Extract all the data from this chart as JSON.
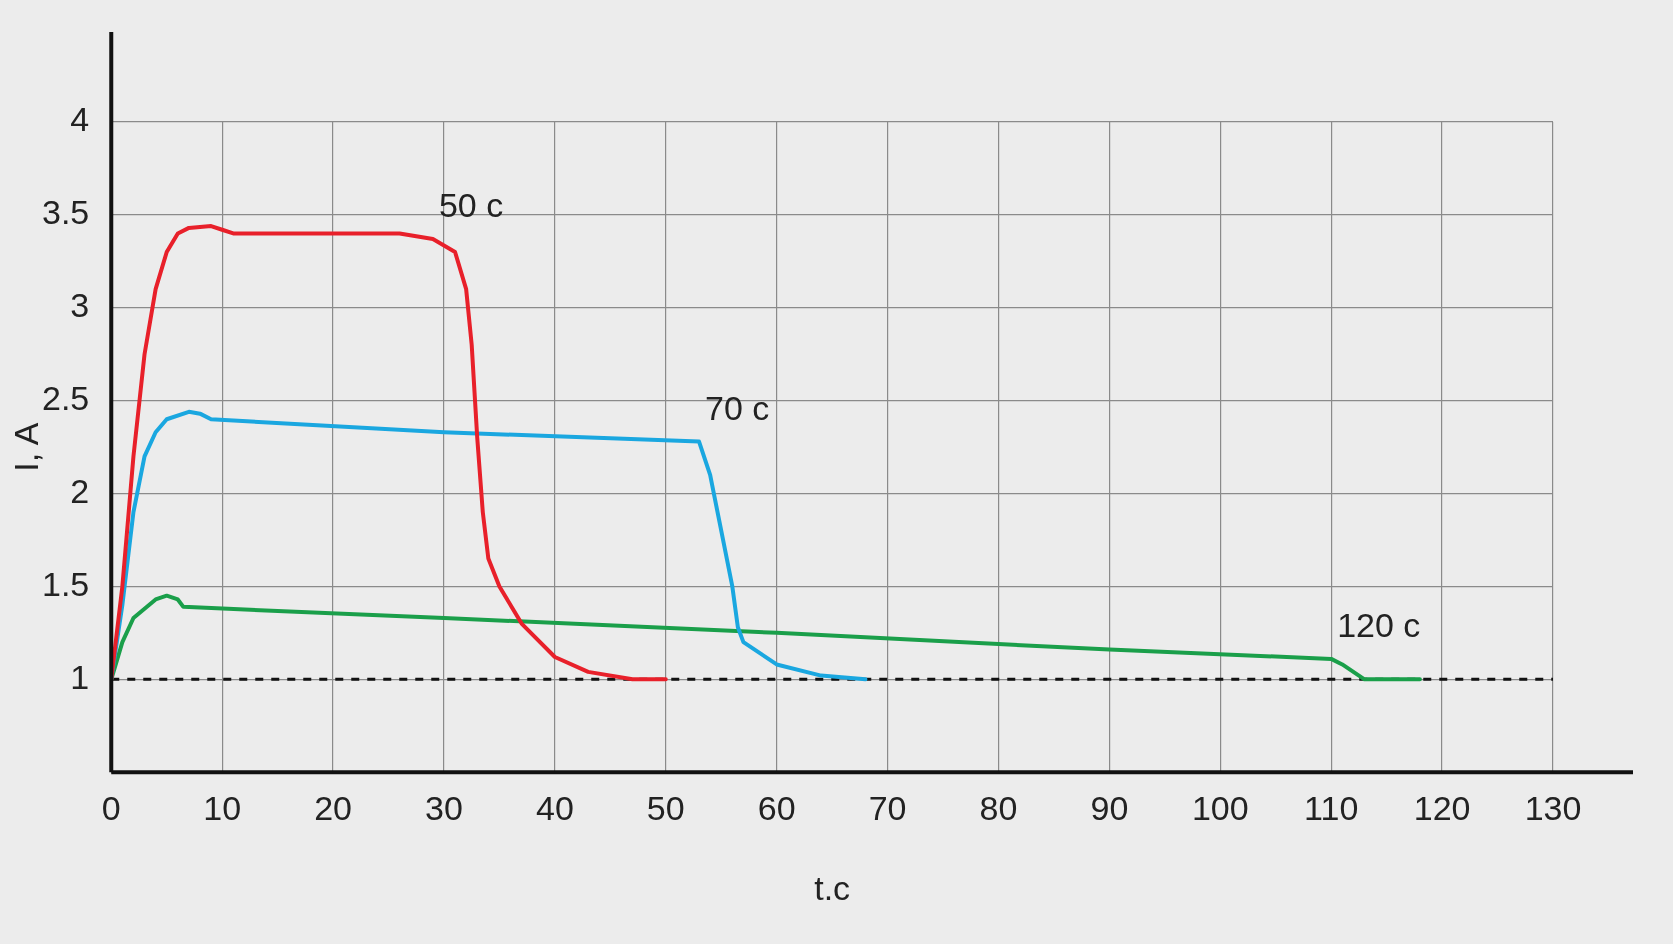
{
  "chart_data": {
    "type": "line",
    "xlabel": "t.c",
    "ylabel": "I, A",
    "xlim": [
      0,
      130
    ],
    "xticks": [
      0,
      10,
      20,
      30,
      40,
      50,
      60,
      70,
      80,
      90,
      100,
      110,
      120,
      130
    ],
    "ylim": [
      0.5,
      4
    ],
    "yticks": [
      {
        "value": 0.5,
        "label": null
      },
      1,
      1.5,
      2,
      2.5,
      3,
      3.5,
      4
    ],
    "grid": true,
    "legend": false,
    "marker": "none",
    "line_style": "solid",
    "series": [
      {
        "name": "50 c",
        "color": "#e8202a",
        "x": [
          0,
          1,
          2,
          3,
          4,
          5,
          6,
          7,
          9,
          10,
          11,
          20,
          26,
          29,
          31,
          32,
          32.5,
          33,
          33.5,
          34,
          35,
          37,
          40,
          43,
          47,
          50
        ],
        "values": [
          1,
          1.5,
          2.2,
          2.75,
          3.1,
          3.3,
          3.4,
          3.43,
          3.44,
          3.42,
          3.4,
          3.4,
          3.4,
          3.37,
          3.3,
          3.1,
          2.8,
          2.3,
          1.9,
          1.65,
          1.5,
          1.3,
          1.12,
          1.04,
          1.0,
          1.0
        ]
      },
      {
        "name": "70 c",
        "color": "#1aa7e0",
        "x": [
          0,
          1,
          2,
          3,
          4,
          5,
          7,
          8,
          9,
          30,
          53,
          54,
          55,
          56,
          56.5,
          57,
          60,
          64,
          68
        ],
        "values": [
          1,
          1.4,
          1.9,
          2.2,
          2.33,
          2.4,
          2.44,
          2.43,
          2.4,
          2.33,
          2.28,
          2.1,
          1.8,
          1.5,
          1.28,
          1.2,
          1.08,
          1.02,
          1.0
        ]
      },
      {
        "name": "120 c",
        "color": "#1a9f4a",
        "x": [
          0,
          1,
          2,
          4,
          5,
          6,
          6.5,
          30,
          60,
          90,
          110,
          111,
          113,
          118
        ],
        "values": [
          1,
          1.2,
          1.33,
          1.43,
          1.45,
          1.43,
          1.39,
          1.33,
          1.25,
          1.16,
          1.11,
          1.08,
          1.0,
          1.0
        ]
      }
    ],
    "ref_lines": [
      {
        "axis": "y",
        "value": 1,
        "color": "#111111",
        "line_style": "dashed"
      }
    ]
  }
}
